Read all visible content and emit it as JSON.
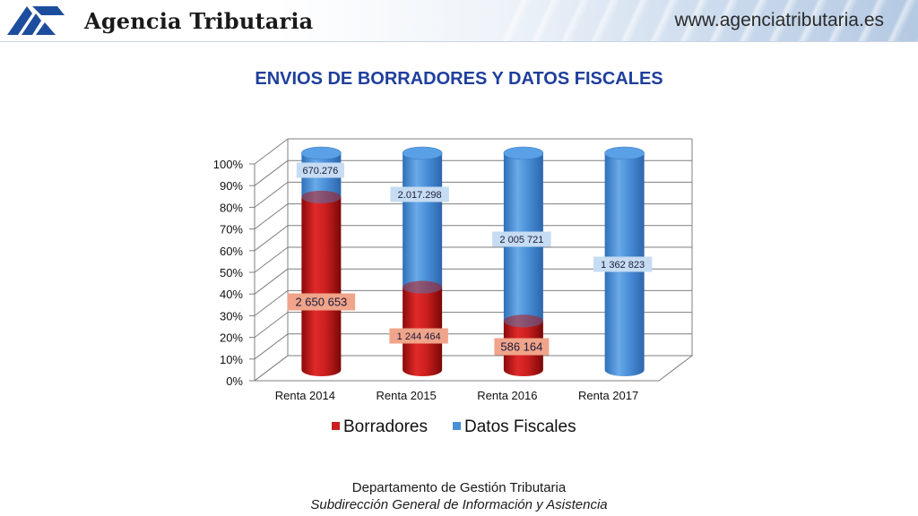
{
  "header": {
    "agency_name": "Agencia Tributaria",
    "website": "www.agenciatributaria.es"
  },
  "footer": {
    "department": "Departamento de Gestión Tributaria",
    "subdirectorate": "Subdirección General de Información y Asistencia"
  },
  "chart_data": {
    "type": "bar",
    "stacked": "percent",
    "title": "ENVIOS DE BORRADORES Y DATOS FISCALES",
    "categories": [
      "Renta 2014",
      "Renta 2015",
      "Renta 2016",
      "Renta 2017"
    ],
    "ylim": [
      0,
      100
    ],
    "y_ticks": [
      "0%",
      "10%",
      "20%",
      "30%",
      "40%",
      "50%",
      "60%",
      "70%",
      "80%",
      "90%",
      "100%"
    ],
    "legend_position": "bottom",
    "grid": true,
    "series": [
      {
        "name": "Borradores",
        "color": "#cc1f1f",
        "percent": [
          79.8,
          38.2,
          22.6,
          0
        ],
        "labels": [
          "2 650 653",
          "1 244 464",
          "586 164",
          ""
        ]
      },
      {
        "name": "Datos Fiscales",
        "color": "#4a90d9",
        "percent": [
          20.2,
          61.8,
          77.4,
          100
        ],
        "labels": [
          "670.276",
          "2.017.298",
          "2 005 721",
          "1 362 823"
        ]
      }
    ]
  }
}
